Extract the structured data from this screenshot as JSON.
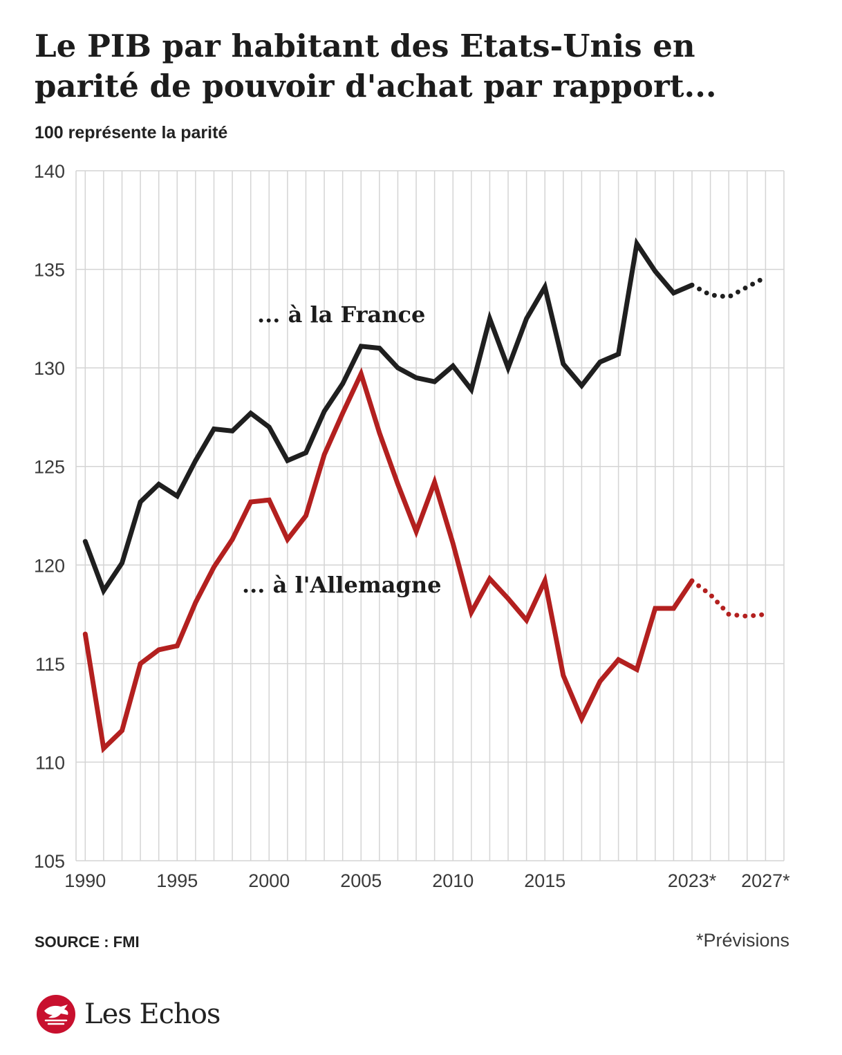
{
  "header": {
    "title": "Le PIB par habitant des Etats-Unis en parité de pouvoir d'achat par rapport...",
    "subtitle": "100 représente la parité"
  },
  "footer": {
    "source": "SOURCE : FMI",
    "footnote": "*Prévisions",
    "brand": "Les Echos"
  },
  "colors": {
    "france": "#1f1f1f",
    "germany": "#b3201f",
    "grid": "#d4d4d4",
    "brand_red": "#c8102e"
  },
  "chart_data": {
    "type": "line",
    "title": "Le PIB par habitant des Etats-Unis en parité de pouvoir d'achat par rapport...",
    "subtitle": "100 représente la parité",
    "x": [
      1990,
      1991,
      1992,
      1993,
      1994,
      1995,
      1996,
      1997,
      1998,
      1999,
      2000,
      2001,
      2002,
      2003,
      2004,
      2005,
      2006,
      2007,
      2008,
      2009,
      2010,
      2011,
      2012,
      2013,
      2014,
      2015,
      2016,
      2017,
      2018,
      2019,
      2020,
      2021,
      2022,
      2023,
      2024,
      2025,
      2026,
      2027
    ],
    "xlim": [
      1989.5,
      2028
    ],
    "ylim": [
      105,
      140
    ],
    "yticks": [
      105,
      110,
      115,
      120,
      125,
      130,
      135,
      140
    ],
    "xtick_labels": [
      {
        "x": 1990,
        "label": "1990"
      },
      {
        "x": 1995,
        "label": "1995"
      },
      {
        "x": 2000,
        "label": "2000"
      },
      {
        "x": 2005,
        "label": "2005"
      },
      {
        "x": 2010,
        "label": "2010"
      },
      {
        "x": 2015,
        "label": "2015"
      },
      {
        "x": 2023,
        "label": "2023*"
      },
      {
        "x": 2027,
        "label": "2027*"
      }
    ],
    "forecast_from": 2023,
    "grid": true,
    "series": [
      {
        "name": "... à la France",
        "key": "france",
        "values": [
          121.2,
          118.7,
          120.1,
          123.2,
          124.1,
          123.5,
          125.3,
          126.9,
          126.8,
          127.7,
          127.0,
          125.3,
          125.7,
          127.8,
          129.2,
          131.1,
          131.0,
          130.0,
          129.5,
          129.3,
          130.1,
          128.9,
          132.5,
          130.0,
          132.5,
          134.1,
          130.2,
          129.1,
          130.3,
          130.7,
          136.3,
          134.9,
          133.8,
          134.2,
          133.7,
          133.6,
          134.1,
          134.6
        ]
      },
      {
        "name": "... à l'Allemagne",
        "key": "germany",
        "values": [
          116.5,
          110.7,
          111.6,
          115.0,
          115.7,
          115.9,
          118.1,
          119.9,
          121.3,
          123.2,
          123.3,
          121.3,
          122.5,
          125.6,
          127.7,
          129.7,
          126.7,
          124.1,
          121.7,
          124.2,
          121.1,
          117.6,
          119.3,
          118.3,
          117.2,
          119.2,
          114.4,
          112.2,
          114.1,
          115.2,
          114.7,
          117.8,
          117.8,
          119.2,
          118.5,
          117.5,
          117.4,
          117.5
        ]
      }
    ]
  }
}
